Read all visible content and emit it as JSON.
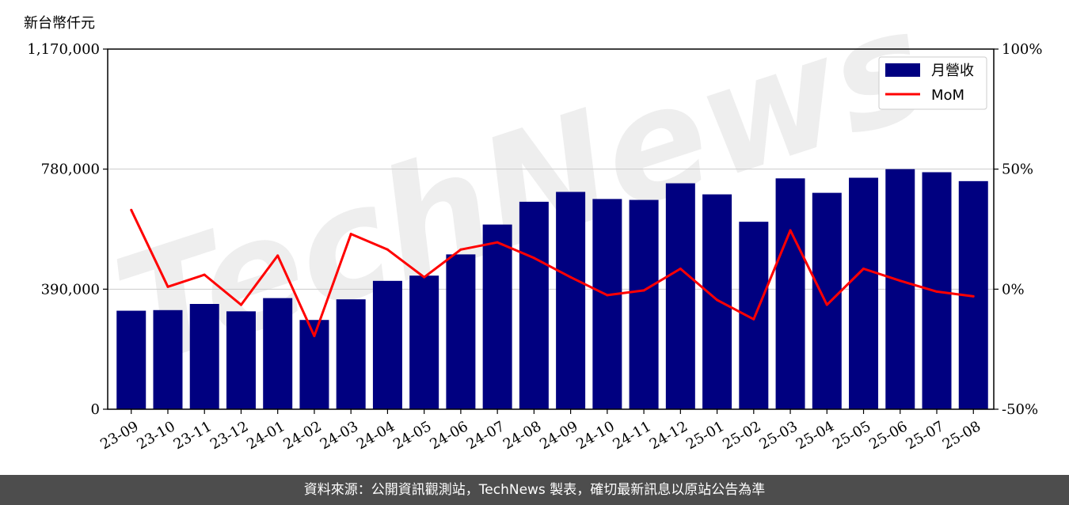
{
  "chart_data": {
    "type": "bar",
    "unit_label": "新台幣仟元",
    "categories": [
      "23-09",
      "23-10",
      "23-11",
      "23-12",
      "24-01",
      "24-02",
      "24-03",
      "24-04",
      "24-05",
      "24-06",
      "24-07",
      "24-08",
      "24-09",
      "24-10",
      "24-11",
      "24-12",
      "25-01",
      "25-02",
      "25-03",
      "25-04",
      "25-05",
      "25-06",
      "25-07",
      "25-08"
    ],
    "series": [
      {
        "name": "月營收",
        "type": "bar",
        "axis": "left",
        "color": "#000080",
        "values": [
          320000,
          322000,
          342000,
          318000,
          361000,
          290000,
          357000,
          417000,
          434000,
          503000,
          600000,
          674000,
          706000,
          683000,
          680000,
          734000,
          698000,
          609000,
          750000,
          703000,
          752000,
          780000,
          770000,
          741000
        ]
      },
      {
        "name": "MoM",
        "type": "line",
        "axis": "right",
        "color": "#ff0000",
        "values": [
          33.0,
          1.0,
          6.0,
          -6.5,
          14.0,
          -19.5,
          23.0,
          16.5,
          5.0,
          16.5,
          19.5,
          13.0,
          5.0,
          -2.5,
          -0.5,
          8.5,
          -4.5,
          -12.5,
          24.5,
          -6.5,
          8.5,
          3.5,
          -1.0,
          -3.0
        ]
      }
    ],
    "y_left": {
      "min": 0,
      "max": 1170000,
      "ticks": [
        0,
        390000,
        780000,
        1170000
      ],
      "tick_labels": [
        "0",
        "390,000",
        "780,000",
        "1,170,000"
      ]
    },
    "y_right": {
      "min": -50,
      "max": 100,
      "ticks": [
        -50,
        0,
        50,
        100
      ],
      "tick_labels": [
        "-50%",
        "0%",
        "50%",
        "100%"
      ]
    },
    "grid": "horizontal",
    "legend": "top-right",
    "watermark": "TechNews"
  },
  "footer": {
    "text": "資料來源：公開資訊觀測站，TechNews 製表，確切最新訊息以原站公告為準"
  }
}
